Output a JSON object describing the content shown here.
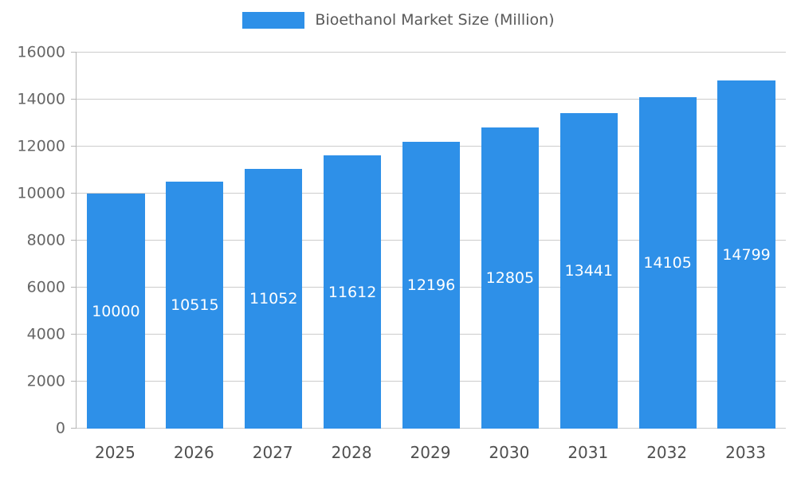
{
  "chart_data": {
    "type": "bar",
    "title": "Bioethanol Market Size (Million)",
    "categories": [
      "2025",
      "2026",
      "2027",
      "2028",
      "2029",
      "2030",
      "2031",
      "2032",
      "2033"
    ],
    "values": [
      10000,
      10515,
      11052,
      11612,
      12196,
      12805,
      13441,
      14105,
      14799
    ],
    "xlabel": "",
    "ylabel": "",
    "ylim": [
      0,
      16000
    ],
    "ytick_step": 2000,
    "ytick_labels": [
      "0",
      "2000",
      "4000",
      "6000",
      "8000",
      "10000",
      "12000",
      "14000",
      "16000"
    ],
    "bar_color": "#2e90e8",
    "value_label_color": "#ffffff",
    "grid": true,
    "gridline_color": "#cccccc",
    "axis_line_color": "#b5b5b5",
    "legend_position": "top"
  }
}
